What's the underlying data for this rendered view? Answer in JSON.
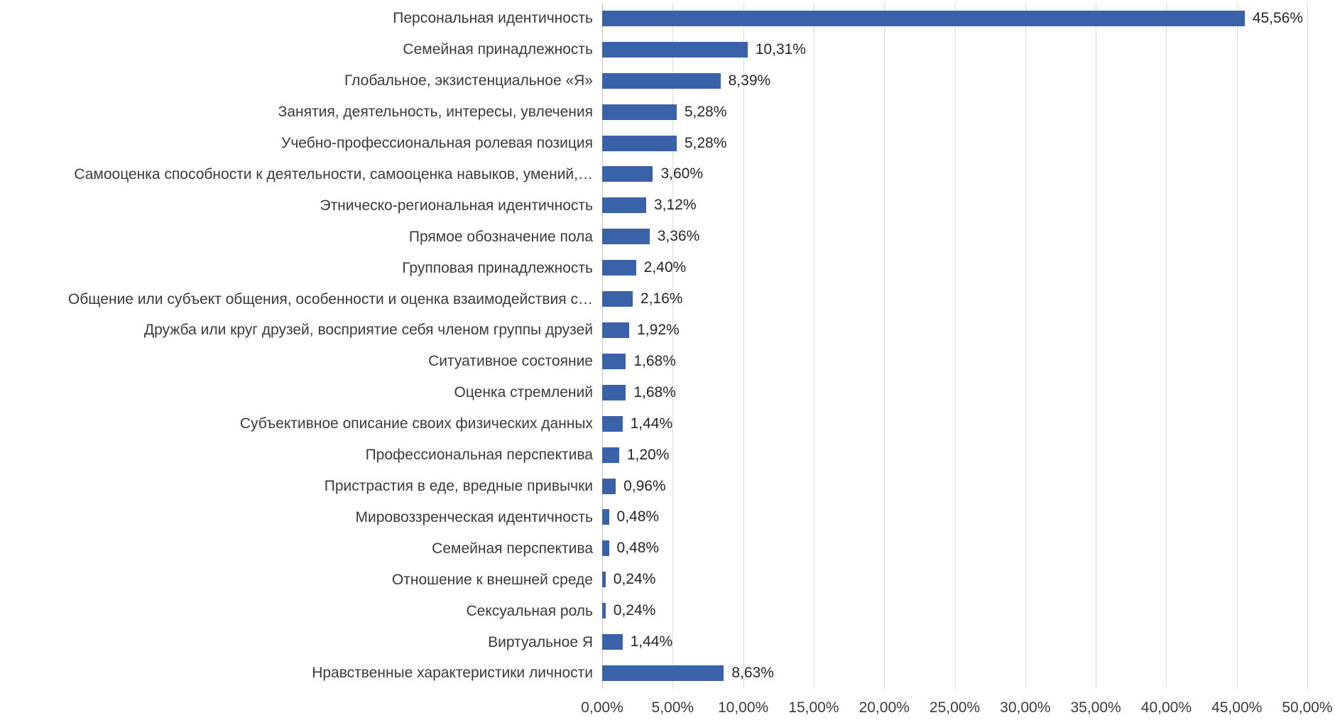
{
  "chart_data": {
    "type": "bar",
    "orientation": "horizontal",
    "title": "",
    "xlabel": "",
    "ylabel": "",
    "xlim": [
      0,
      50
    ],
    "legend_position": "none",
    "grid": "vertical",
    "bar_color": "#3a62a8",
    "gridline_color": "#d9d9d9",
    "categories": [
      "Персональная идентичность",
      "Семейная принадлежность",
      "Глобальное, экзистенциальное «Я»",
      "Занятия, деятельность, интересы, увлечения",
      "Учебно-профессиональная ролевая позиция",
      "Самооценка способности к деятельности, самооценка навыков, умений,…",
      "Этническо-региональная идентичность",
      "Прямое обозначение пола",
      "Групповая принадлежность",
      "Общение или субъект общения, особенности и оценка взаимодействия с…",
      "Дружба или круг друзей, восприятие себя членом группы друзей",
      "Ситуативное состояние",
      "Оценка стремлений",
      "Субъективное описание своих физических данных",
      "Профессиональная перспектива",
      "Пристрастия в еде, вредные привычки",
      "Мировоззренческая идентичность",
      "Семейная перспектива",
      "Отношение к внешней среде",
      "Сексуальная роль",
      "Виртуальное Я",
      "Нравственные характеристики личности"
    ],
    "values": [
      45.56,
      10.31,
      8.39,
      5.28,
      5.28,
      3.6,
      3.12,
      3.36,
      2.4,
      2.16,
      1.92,
      1.68,
      1.68,
      1.44,
      1.2,
      0.96,
      0.48,
      0.48,
      0.24,
      0.24,
      1.44,
      8.63
    ],
    "data_labels": [
      "45,56%",
      "10,31%",
      "8,39%",
      "5,28%",
      "5,28%",
      "3,60%",
      "3,12%",
      "3,36%",
      "2,40%",
      "2,16%",
      "1,92%",
      "1,68%",
      "1,68%",
      "1,44%",
      "1,20%",
      "0,96%",
      "0,48%",
      "0,48%",
      "0,24%",
      "0,24%",
      "1,44%",
      "8,63%"
    ],
    "x_ticks": [
      "0,00%",
      "5,00%",
      "10,00%",
      "15,00%",
      "20,00%",
      "25,00%",
      "30,00%",
      "35,00%",
      "40,00%",
      "45,00%",
      "50,00%"
    ]
  }
}
